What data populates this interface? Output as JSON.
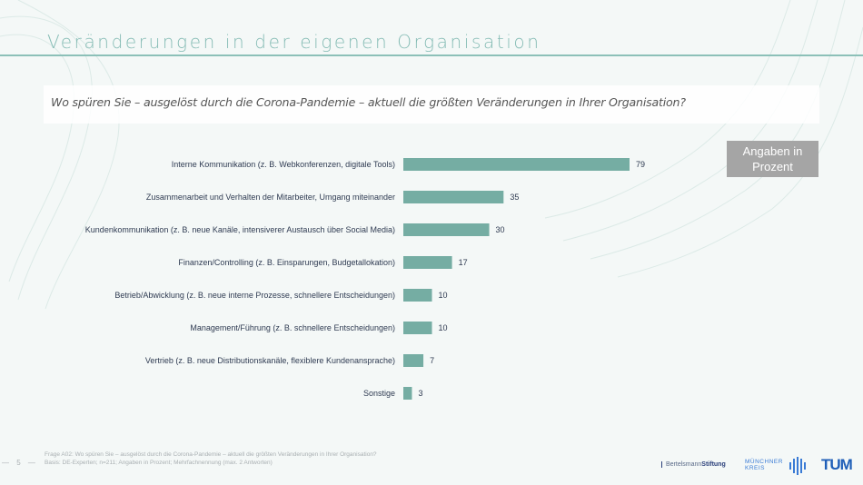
{
  "slide": {
    "title": "Veränderungen in der eigenen Organisation",
    "question": "Wo spüren Sie – ausgelöst durch die Corona-Pandemie – aktuell die größten Veränderungen in Ihrer Organisation?",
    "unit_badge": "Angaben in Prozent",
    "page_number": "— 5 —",
    "footnote_line1": "Frage A02: Wo spüren Sie – ausgelöst durch die Corona-Pandemie – aktuell die größten Veränderungen in Ihrer Organisation?",
    "footnote_line2": "Basis: DE-Experten; n=211; Angaben in Prozent; Mehrfachnennung (max. 2 Antworten)"
  },
  "logos": {
    "bertelsmann_prefix": "Bertelsmann",
    "bertelsmann_suffix": "Stiftung",
    "muenchner_kreis_line1": "MÜNCHNER",
    "muenchner_kreis_line2": "KREIS",
    "tum": "TUM"
  },
  "colors": {
    "bar": "#75ada3",
    "accent": "#86bcb5",
    "badge": "#a5a5a5"
  },
  "chart_data": {
    "type": "bar",
    "orientation": "horizontal",
    "title": "Wo spüren Sie – ausgelöst durch die Corona-Pandemie – aktuell die größten Veränderungen in Ihrer Organisation?",
    "xlabel": "",
    "ylabel": "",
    "unit": "Prozent",
    "xlim": [
      0,
      79
    ],
    "grid": false,
    "legend": "none",
    "categories": [
      "Interne Kommunikation (z. B. Webkonferenzen, digitale Tools)",
      "Zusammenarbeit und Verhalten der Mitarbeiter, Umgang miteinander",
      "Kundenkommunikation (z. B. neue Kanäle, intensiverer Austausch über Social Media)",
      "Finanzen/Controlling (z. B. Einsparungen, Budgetallokation)",
      "Betrieb/Abwicklung (z. B. neue interne Prozesse, schnellere Entscheidungen)",
      "Management/Führung (z. B. schnellere Entscheidungen)",
      "Vertrieb (z. B. neue Distributionskanäle, flexiblere Kundenansprache)",
      "Sonstige"
    ],
    "values": [
      79,
      35,
      30,
      17,
      10,
      10,
      7,
      3
    ]
  }
}
